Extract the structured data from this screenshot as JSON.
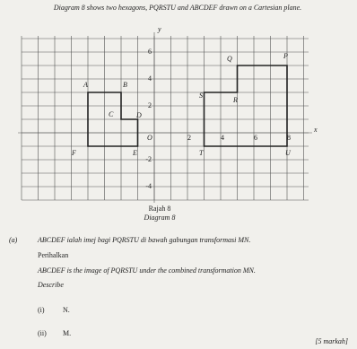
{
  "intro": "Diagram 8 shows two hexagons, PQRSTU and ABCDEF drawn on a Cartesian plane.",
  "diagram": {
    "axis_x": "x",
    "axis_y": "y",
    "origin": "O",
    "x_ticks": [
      "2",
      "4",
      "6",
      "8"
    ],
    "y_ticks": [
      "6",
      "4",
      "2",
      "-2",
      "-4"
    ],
    "points": {
      "P": "P",
      "Q": "Q",
      "R": "R",
      "S": "S",
      "T": "T",
      "U": "U",
      "A": "A",
      "B": "B",
      "C": "C",
      "D": "D",
      "E": "E",
      "F": "F"
    },
    "caption_malay": "Rajah 8",
    "caption_english": "Diagram 8"
  },
  "question": {
    "label": "(a)",
    "malay": "ABCDEF ialah imej bagi PQRSTU di bawah gabungan transformasi MN.",
    "instruction_malay": "Perihalkan",
    "english": "ABCDEF is the image of PQRSTU under the combined transformation MN.",
    "instruction_english": "Describe",
    "parts": [
      {
        "label": "(i)",
        "text": "N."
      },
      {
        "label": "(ii)",
        "text": "M."
      }
    ],
    "marks": "[5 markah]"
  }
}
